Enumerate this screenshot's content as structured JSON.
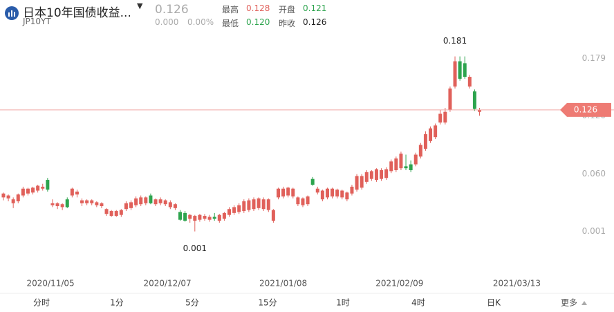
{
  "header": {
    "name": "日本10年国债收益...",
    "code": "JP10YT",
    "price": "0.126",
    "change": "0.000",
    "change_pct": "0.00%",
    "high_label": "最高",
    "high": "0.128",
    "open_label": "开盘",
    "open": "0.121",
    "low_label": "最低",
    "low": "0.120",
    "prev_label": "昨收",
    "prev": "0.126"
  },
  "tabs": [
    "分时",
    "1分",
    "5分",
    "15分",
    "1时",
    "4时",
    "日K",
    "更多"
  ],
  "chart_data": {
    "type": "candlestick",
    "up_color": "#e0605a",
    "down_color": "#2da44e",
    "last_price": 0.126,
    "ylim": [
      -0.042,
      0.207
    ],
    "yticks": [
      0.001,
      {
        "value": 0.06,
        "label": "0.060"
      },
      {
        "value": 0.12,
        "label": "0.120"
      },
      0.179
    ],
    "xlim": [
      -0.7,
      112
    ],
    "xticks": [
      {
        "value": 9.6,
        "label": "2020/11/05"
      },
      {
        "value": 33.4,
        "label": "2020/12/07"
      },
      {
        "value": 57,
        "label": "2021/01/08"
      },
      {
        "value": 80.7,
        "label": "2021/02/09"
      },
      {
        "value": 104.6,
        "label": "2021/03/13"
      }
    ],
    "ohlc": [
      [
        0.036,
        0.041,
        0.033,
        0.04
      ],
      [
        0.035,
        0.039,
        0.032,
        0.038
      ],
      [
        0.03,
        0.036,
        0.025,
        0.034
      ],
      [
        0.032,
        0.04,
        0.03,
        0.039
      ],
      [
        0.038,
        0.047,
        0.036,
        0.045
      ],
      [
        0.04,
        0.046,
        0.038,
        0.045
      ],
      [
        0.041,
        0.047,
        0.039,
        0.046
      ],
      [
        0.043,
        0.049,
        0.041,
        0.048
      ],
      [
        0.045,
        0.05,
        0.043,
        0.047
      ],
      [
        0.054,
        0.056,
        0.042,
        0.044
      ],
      [
        0.028,
        0.034,
        0.026,
        0.03
      ],
      [
        0.027,
        0.031,
        0.024,
        0.03
      ],
      [
        0.026,
        0.03,
        0.023,
        0.029
      ],
      [
        0.034,
        0.036,
        0.025,
        0.026
      ],
      [
        0.038,
        0.046,
        0.036,
        0.045
      ],
      [
        0.039,
        0.044,
        0.036,
        0.042
      ],
      [
        0.03,
        0.035,
        0.027,
        0.033
      ],
      [
        0.03,
        0.034,
        0.028,
        0.033
      ],
      [
        0.03,
        0.034,
        0.028,
        0.033
      ],
      [
        0.028,
        0.032,
        0.026,
        0.031
      ],
      [
        0.027,
        0.031,
        0.025,
        0.03
      ],
      [
        0.019,
        0.025,
        0.017,
        0.024
      ],
      [
        0.017,
        0.023,
        0.016,
        0.022
      ],
      [
        0.017,
        0.023,
        0.016,
        0.022
      ],
      [
        0.018,
        0.024,
        0.016,
        0.023
      ],
      [
        0.024,
        0.032,
        0.022,
        0.03
      ],
      [
        0.025,
        0.033,
        0.023,
        0.031
      ],
      [
        0.028,
        0.037,
        0.026,
        0.035
      ],
      [
        0.029,
        0.038,
        0.027,
        0.036
      ],
      [
        0.03,
        0.037,
        0.028,
        0.036
      ],
      [
        0.038,
        0.04,
        0.029,
        0.03
      ],
      [
        0.029,
        0.035,
        0.027,
        0.034
      ],
      [
        0.03,
        0.036,
        0.028,
        0.034
      ],
      [
        0.029,
        0.034,
        0.027,
        0.033
      ],
      [
        0.026,
        0.033,
        0.024,
        0.031
      ],
      [
        0.025,
        0.03,
        0.023,
        0.029
      ],
      [
        0.021,
        0.023,
        0.012,
        0.013
      ],
      [
        0.02,
        0.022,
        0.011,
        0.012
      ],
      [
        0.014,
        0.019,
        0.01,
        0.018
      ],
      [
        0.012,
        0.018,
        0.001,
        0.017
      ],
      [
        0.013,
        0.019,
        0.011,
        0.018
      ],
      [
        0.014,
        0.019,
        0.012,
        0.017
      ],
      [
        0.013,
        0.018,
        0.011,
        0.016
      ],
      [
        0.016,
        0.02,
        0.012,
        0.014
      ],
      [
        0.012,
        0.019,
        0.01,
        0.018
      ],
      [
        0.014,
        0.021,
        0.012,
        0.02
      ],
      [
        0.018,
        0.026,
        0.016,
        0.024
      ],
      [
        0.02,
        0.028,
        0.018,
        0.026
      ],
      [
        0.021,
        0.03,
        0.019,
        0.028
      ],
      [
        0.022,
        0.034,
        0.02,
        0.032
      ],
      [
        0.023,
        0.035,
        0.021,
        0.033
      ],
      [
        0.024,
        0.036,
        0.022,
        0.034
      ],
      [
        0.025,
        0.036,
        0.023,
        0.035
      ],
      [
        0.024,
        0.036,
        0.022,
        0.034
      ],
      [
        0.023,
        0.035,
        0.021,
        0.034
      ],
      [
        0.012,
        0.024,
        0.01,
        0.023
      ],
      [
        0.036,
        0.046,
        0.034,
        0.045
      ],
      [
        0.037,
        0.047,
        0.035,
        0.045
      ],
      [
        0.038,
        0.047,
        0.036,
        0.046
      ],
      [
        0.037,
        0.046,
        0.035,
        0.045
      ],
      [
        0.029,
        0.037,
        0.027,
        0.036
      ],
      [
        0.028,
        0.036,
        0.026,
        0.035
      ],
      [
        0.029,
        0.038,
        0.027,
        0.037
      ],
      [
        0.055,
        0.057,
        0.048,
        0.049
      ],
      [
        0.041,
        0.047,
        0.039,
        0.045
      ],
      [
        0.034,
        0.044,
        0.032,
        0.043
      ],
      [
        0.036,
        0.046,
        0.034,
        0.045
      ],
      [
        0.037,
        0.046,
        0.035,
        0.045
      ],
      [
        0.037,
        0.045,
        0.035,
        0.044
      ],
      [
        0.036,
        0.044,
        0.034,
        0.043
      ],
      [
        0.034,
        0.042,
        0.032,
        0.041
      ],
      [
        0.04,
        0.049,
        0.038,
        0.047
      ],
      [
        0.044,
        0.06,
        0.042,
        0.058
      ],
      [
        0.046,
        0.06,
        0.044,
        0.058
      ],
      [
        0.052,
        0.064,
        0.05,
        0.062
      ],
      [
        0.055,
        0.064,
        0.053,
        0.063
      ],
      [
        0.054,
        0.066,
        0.052,
        0.065
      ],
      [
        0.055,
        0.066,
        0.053,
        0.064
      ],
      [
        0.056,
        0.067,
        0.054,
        0.065
      ],
      [
        0.063,
        0.075,
        0.061,
        0.073
      ],
      [
        0.064,
        0.078,
        0.062,
        0.076
      ],
      [
        0.066,
        0.083,
        0.064,
        0.081
      ],
      [
        0.068,
        0.08,
        0.064,
        0.066
      ],
      [
        0.07,
        0.074,
        0.062,
        0.064
      ],
      [
        0.07,
        0.082,
        0.068,
        0.08
      ],
      [
        0.078,
        0.092,
        0.076,
        0.09
      ],
      [
        0.086,
        0.104,
        0.084,
        0.101
      ],
      [
        0.094,
        0.109,
        0.092,
        0.107
      ],
      [
        0.098,
        0.112,
        0.096,
        0.11
      ],
      [
        0.113,
        0.126,
        0.111,
        0.122
      ],
      [
        0.113,
        0.128,
        0.111,
        0.124
      ],
      [
        0.126,
        0.15,
        0.124,
        0.148
      ],
      [
        0.15,
        0.181,
        0.148,
        0.176
      ],
      [
        0.176,
        0.181,
        0.156,
        0.158
      ],
      [
        0.174,
        0.181,
        0.158,
        0.16
      ],
      [
        0.15,
        0.162,
        0.148,
        0.16
      ],
      [
        0.145,
        0.147,
        0.125,
        0.127
      ],
      [
        0.124,
        0.128,
        0.12,
        0.126
      ]
    ]
  }
}
